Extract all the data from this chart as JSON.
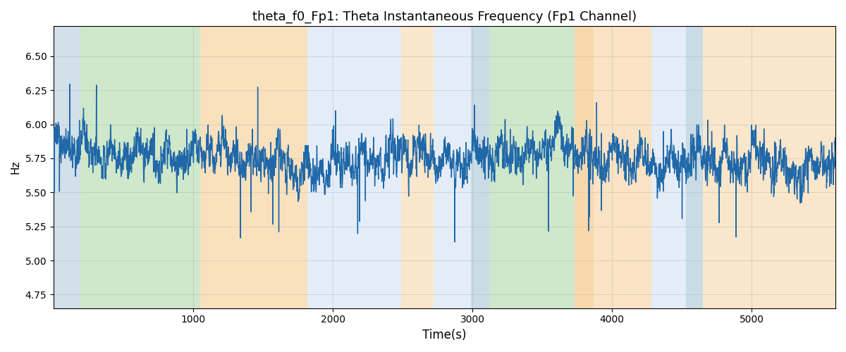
{
  "title": "theta_f0_Fp1: Theta Instantaneous Frequency (Fp1 Channel)",
  "xlabel": "Time(s)",
  "ylabel": "Hz",
  "ylim": [
    4.65,
    6.72
  ],
  "xlim": [
    0,
    5600
  ],
  "xticks": [
    1000,
    2000,
    3000,
    4000,
    5000
  ],
  "background_bands": [
    {
      "xmin": 0,
      "xmax": 190,
      "color": "#aec8d8",
      "alpha": 0.55
    },
    {
      "xmin": 190,
      "xmax": 1050,
      "color": "#a8d4a0",
      "alpha": 0.55
    },
    {
      "xmin": 1050,
      "xmax": 1820,
      "color": "#f5c98a",
      "alpha": 0.55
    },
    {
      "xmin": 1820,
      "xmax": 2490,
      "color": "#c5d9ee",
      "alpha": 0.45
    },
    {
      "xmin": 2490,
      "xmax": 2720,
      "color": "#f5c98a",
      "alpha": 0.45
    },
    {
      "xmin": 2720,
      "xmax": 2990,
      "color": "#c5d9ee",
      "alpha": 0.45
    },
    {
      "xmin": 2990,
      "xmax": 3120,
      "color": "#aec8d8",
      "alpha": 0.65
    },
    {
      "xmin": 3120,
      "xmax": 3730,
      "color": "#a8d4a0",
      "alpha": 0.55
    },
    {
      "xmin": 3730,
      "xmax": 3870,
      "color": "#f5c98a",
      "alpha": 0.7
    },
    {
      "xmin": 3870,
      "xmax": 4280,
      "color": "#f5c98a",
      "alpha": 0.5
    },
    {
      "xmin": 4280,
      "xmax": 4530,
      "color": "#c5d9ee",
      "alpha": 0.45
    },
    {
      "xmin": 4530,
      "xmax": 4650,
      "color": "#aec8d8",
      "alpha": 0.65
    },
    {
      "xmin": 4650,
      "xmax": 5600,
      "color": "#f5c98a",
      "alpha": 0.45
    }
  ],
  "line_color": "#2068a8",
  "line_width": 1.0,
  "title_fontsize": 13,
  "axis_fontsize": 12,
  "ylabel_fontsize": 11,
  "figsize": [
    12,
    5
  ],
  "dpi": 100,
  "grid_color": "#b0b8c8",
  "grid_alpha": 0.7,
  "grid_lw": 0.6,
  "ytick_interval": 0.25,
  "signal_t_start": 0,
  "signal_t_end": 5600,
  "signal_n": 5600,
  "signal_base": 5.75,
  "signal_seed": 1234
}
